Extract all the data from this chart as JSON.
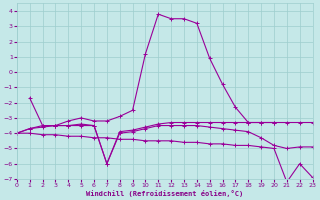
{
  "xlabel": "Windchill (Refroidissement éolien,°C)",
  "background_color": "#c5e8e8",
  "grid_color": "#9ecece",
  "line_color": "#990099",
  "xlim": [
    0,
    23
  ],
  "ylim": [
    -7,
    4.5
  ],
  "xticks": [
    0,
    1,
    2,
    3,
    4,
    5,
    6,
    7,
    8,
    9,
    10,
    11,
    12,
    13,
    14,
    15,
    16,
    17,
    18,
    19,
    20,
    21,
    22,
    23
  ],
  "yticks": [
    -7,
    -6,
    -5,
    -4,
    -3,
    -2,
    -1,
    0,
    1,
    2,
    3,
    4
  ],
  "line1_x": [
    1,
    2,
    3,
    4,
    5,
    6,
    7,
    8,
    9,
    10,
    11,
    12,
    13,
    14,
    15,
    16,
    17,
    18,
    19,
    20
  ],
  "line1_y": [
    -1.7,
    -3.5,
    -3.5,
    -3.2,
    -3.0,
    -3.2,
    -3.2,
    -2.9,
    -2.5,
    1.2,
    3.8,
    3.5,
    3.5,
    3.2,
    0.9,
    -0.8,
    -2.3,
    -3.3,
    -3.3,
    -3.3
  ],
  "line2_x": [
    0,
    1,
    2,
    3,
    4,
    5,
    6,
    7,
    8,
    9,
    10,
    11,
    12,
    13,
    14,
    15,
    16,
    17,
    18,
    19,
    20,
    21,
    22,
    23
  ],
  "line2_y": [
    -4.0,
    -3.7,
    -3.5,
    -3.5,
    -3.5,
    -3.5,
    -3.5,
    -6.0,
    -3.9,
    -3.8,
    -3.6,
    -3.4,
    -3.3,
    -3.3,
    -3.3,
    -3.3,
    -3.3,
    -3.3,
    -3.3,
    -3.3,
    -3.3,
    -3.3,
    -3.3,
    -3.3
  ],
  "line3_x": [
    0,
    1,
    2,
    3,
    4,
    5,
    6,
    7,
    8,
    9,
    10,
    11,
    12,
    13,
    14,
    15,
    16,
    17,
    18,
    19,
    20,
    21,
    22,
    23
  ],
  "line3_y": [
    -4.0,
    -3.7,
    -3.6,
    -3.5,
    -3.5,
    -3.4,
    -3.5,
    -6.0,
    -4.0,
    -3.9,
    -3.7,
    -3.5,
    -3.5,
    -3.5,
    -3.5,
    -3.6,
    -3.7,
    -3.8,
    -3.9,
    -4.3,
    -4.8,
    -5.0,
    -4.9,
    -4.9
  ],
  "line4_x": [
    0,
    1,
    2,
    3,
    4,
    5,
    6,
    7,
    8,
    9,
    10,
    11,
    12,
    13,
    14,
    15,
    16,
    17,
    18,
    19,
    20,
    21,
    22,
    23
  ],
  "line4_y": [
    -4.0,
    -4.0,
    -4.1,
    -4.1,
    -4.2,
    -4.2,
    -4.3,
    -4.3,
    -4.4,
    -4.4,
    -4.5,
    -4.5,
    -4.5,
    -4.6,
    -4.6,
    -4.7,
    -4.7,
    -4.8,
    -4.8,
    -4.9,
    -5.0,
    -7.2,
    -6.0,
    -6.9
  ]
}
